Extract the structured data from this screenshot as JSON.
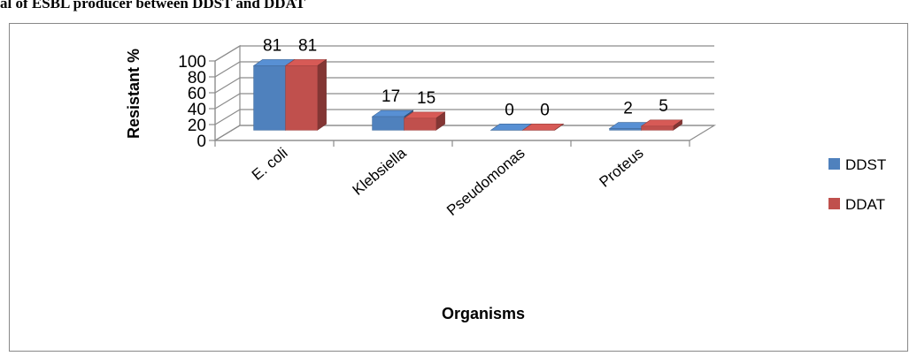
{
  "caption": "al of ESBL producer between DDST and DDAT",
  "chart_data": {
    "type": "bar",
    "style": "3d-clustered-column",
    "categories": [
      "E. coli",
      "Klebsiella",
      "Pseudomonas",
      "Proteus"
    ],
    "series": [
      {
        "name": "DDST",
        "values": [
          81,
          17,
          0,
          2
        ],
        "color": "#4f81bd"
      },
      {
        "name": "DDAT",
        "values": [
          81,
          15,
          0,
          5
        ],
        "color": "#c0504d"
      }
    ],
    "yticks": [
      "0",
      "20",
      "40",
      "60",
      "80",
      "100"
    ],
    "ylim": [
      0,
      100
    ],
    "xlabel": "Organisms",
    "ylabel": "Resistant %",
    "grid": true,
    "legend": "right",
    "data_labels": true
  }
}
